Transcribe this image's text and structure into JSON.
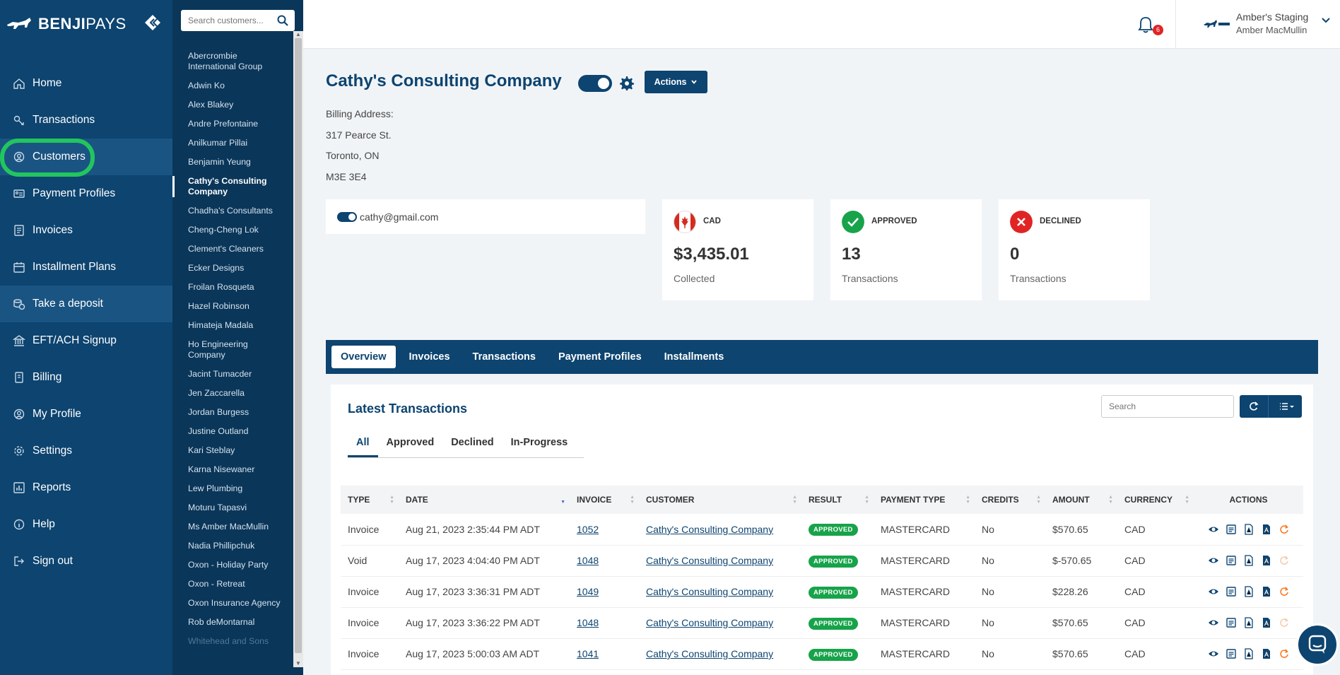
{
  "brand": {
    "name_bold": "BENJI",
    "name_light": "PAYS"
  },
  "nav": {
    "items": [
      {
        "label": "Home",
        "icon": "home-icon"
      },
      {
        "label": "Transactions",
        "icon": "transactions-icon"
      },
      {
        "label": "Customers",
        "icon": "customers-icon"
      },
      {
        "label": "Payment Profiles",
        "icon": "payment-profiles-icon"
      },
      {
        "label": "Invoices",
        "icon": "invoice-icon"
      },
      {
        "label": "Installment Plans",
        "icon": "calendar-icon"
      },
      {
        "label": "Take a deposit",
        "icon": "deposit-icon"
      },
      {
        "label": "EFT/ACH Signup",
        "icon": "bank-icon"
      },
      {
        "label": "Billing",
        "icon": "billing-icon"
      },
      {
        "label": "My Profile",
        "icon": "profile-icon"
      },
      {
        "label": "Settings",
        "icon": "gear-icon"
      },
      {
        "label": "Reports",
        "icon": "reports-icon"
      },
      {
        "label": "Help",
        "icon": "help-icon"
      },
      {
        "label": "Sign out",
        "icon": "sign-out-icon"
      }
    ],
    "active": "Customers"
  },
  "customer_search": {
    "placeholder": "Search customers..."
  },
  "customer_list": [
    "Abercrombie International Group",
    "Adwin Ko",
    "Alex Blakey",
    "Andre Prefontaine",
    "Anilkumar Pillai",
    "Benjamin Yeung",
    "Cathy's Consulting Company",
    "Chadha's Consultants",
    "Cheng-Cheng Lok",
    "Clement's Cleaners",
    "Ecker Designs",
    "Froilan Rosqueta",
    "Hazel Robinson",
    "Himateja Madala",
    "Ho Engineering Company",
    "Jacint Tumacder",
    "Jen Zaccarella",
    "Jordan Burgess",
    "Justine Outland",
    "Kari Steblay",
    "Karna Nisewaner",
    "Lew Plumbing",
    "Moturu Tapasvi",
    "Ms Amber MacMullin",
    "Nadia Phillipchuk",
    "Oxon - Holiday Party",
    "Oxon - Retreat",
    "Oxon Insurance Agency",
    "Rob deMontarnal",
    "Whitehead and Sons"
  ],
  "header": {
    "notifications_count": "6",
    "account_name": "Amber's Staging",
    "user_name": "Amber MacMullin"
  },
  "customer": {
    "name": "Cathy's Consulting Company",
    "actions_label": "Actions",
    "billing_label": "Billing Address:",
    "address_line1": "317 Pearce St.",
    "address_line2": "Toronto, ON",
    "postal": "M3E 3E4",
    "email": "cathy@gmail.com"
  },
  "stats": [
    {
      "label": "CAD",
      "value": "$3,435.01",
      "sub": "Collected",
      "icon": "canada-flag-icon"
    },
    {
      "label": "APPROVED",
      "value": "13",
      "sub": "Transactions",
      "icon": "check-icon",
      "color": "#17a34a"
    },
    {
      "label": "DECLINED",
      "value": "0",
      "sub": "Transactions",
      "icon": "x-icon",
      "color": "#e02424"
    }
  ],
  "tabs": [
    "Overview",
    "Invoices",
    "Transactions",
    "Payment Profiles",
    "Installments"
  ],
  "panel": {
    "title": "Latest Transactions",
    "search_placeholder": "Search",
    "subtabs": [
      "All",
      "Approved",
      "Declined",
      "In-Progress"
    ]
  },
  "table": {
    "headers": [
      "TYPE",
      "DATE",
      "INVOICE",
      "CUSTOMER",
      "RESULT",
      "PAYMENT TYPE",
      "CREDITS",
      "AMOUNT",
      "CURRENCY",
      "ACTIONS"
    ],
    "rows": [
      {
        "type": "Invoice",
        "date": "Aug 21, 2023 2:35:44 PM ADT",
        "invoice": "1052",
        "customer": "Cathy's Consulting Company",
        "result": "APPROVED",
        "payment_type": "MASTERCARD",
        "credits": "No",
        "amount": "$570.65",
        "currency": "CAD",
        "refund_enabled": true
      },
      {
        "type": "Void",
        "date": "Aug 17, 2023 4:04:40 PM ADT",
        "invoice": "1048",
        "customer": "Cathy's Consulting Company",
        "result": "APPROVED",
        "payment_type": "MASTERCARD",
        "credits": "No",
        "amount": "$-570.65",
        "currency": "CAD",
        "refund_enabled": false
      },
      {
        "type": "Invoice",
        "date": "Aug 17, 2023 3:36:31 PM ADT",
        "invoice": "1049",
        "customer": "Cathy's Consulting Company",
        "result": "APPROVED",
        "payment_type": "MASTERCARD",
        "credits": "No",
        "amount": "$228.26",
        "currency": "CAD",
        "refund_enabled": true
      },
      {
        "type": "Invoice",
        "date": "Aug 17, 2023 3:36:22 PM ADT",
        "invoice": "1048",
        "customer": "Cathy's Consulting Company",
        "result": "APPROVED",
        "payment_type": "MASTERCARD",
        "credits": "No",
        "amount": "$570.65",
        "currency": "CAD",
        "refund_enabled": false
      },
      {
        "type": "Invoice",
        "date": "Aug 17, 2023 5:00:03 AM ADT",
        "invoice": "1041",
        "customer": "Cathy's Consulting Company",
        "result": "APPROVED",
        "payment_type": "MASTERCARD",
        "credits": "No",
        "amount": "$570.65",
        "currency": "CAD",
        "refund_enabled": true
      }
    ]
  },
  "colors": {
    "primary": "#0d4470",
    "approved": "#17a34a",
    "declined": "#e02424",
    "highlight": "#22c55e",
    "refund": "#f97316"
  }
}
